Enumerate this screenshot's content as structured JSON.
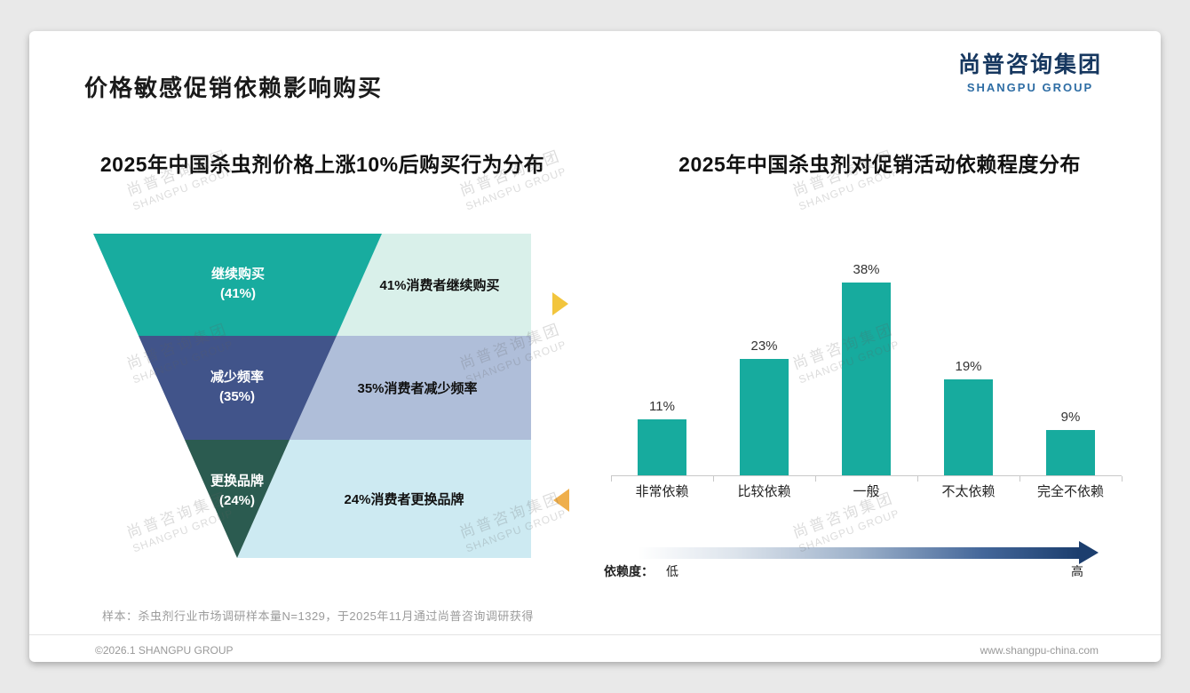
{
  "page": {
    "title": "价格敏感促销依赖影响购买",
    "logo_cn": "尚普咨询集团",
    "logo_en": "SHANGPU GROUP",
    "watermark_cn": "尚普咨询集团",
    "watermark_en": "SHANGPU GROUP",
    "note": "样本：杀虫剂行业市场调研样本量N=1329，于2025年11月通过尚普咨询调研获得",
    "footer_left": "©2026.1 SHANGPU GROUP",
    "footer_right": "www.shangpu-china.com"
  },
  "chart_data": [
    {
      "type": "funnel",
      "title": "2025年中国杀虫剂价格上涨10%后购买行为分布",
      "levels": [
        {
          "label": "继续购买",
          "value": "(41%)",
          "desc": "41%消费者继续购买",
          "color": "#18AC9F",
          "box_color": "#D9F0EA"
        },
        {
          "label": "减少频率",
          "value": "(35%)",
          "desc": "35%消费者减少频率",
          "color": "#41548A",
          "box_color": "#AFBED9"
        },
        {
          "label": "更换品牌",
          "value": "(24%)",
          "desc": "24%消费者更换品牌",
          "color": "#2B5B50",
          "box_color": "#CDEAF2"
        }
      ],
      "arrow_color_top": "#F2C53D",
      "arrow_color_bottom": "#EFAF4C"
    },
    {
      "type": "bar",
      "title": "2025年中国杀虫剂对促销活动依赖程度分布",
      "categories": [
        "非常依赖",
        "比较依赖",
        "一般",
        "不太依赖",
        "完全不依赖"
      ],
      "values": [
        11,
        23,
        38,
        19,
        9
      ],
      "value_labels": [
        "11%",
        "23%",
        "38%",
        "19%",
        "9%"
      ],
      "bar_color": "#17AB9E",
      "ylim": [
        0,
        40
      ],
      "grid": false,
      "axis_note": {
        "label": "依赖度：",
        "low": "低",
        "high": "高",
        "gradient": [
          "#FFFFFF",
          "#1C3E6E"
        ]
      }
    }
  ]
}
